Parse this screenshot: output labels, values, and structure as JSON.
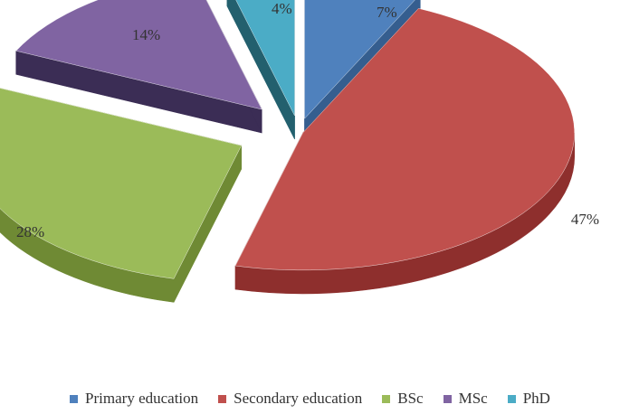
{
  "chart_data": {
    "type": "pie",
    "style": "3d-exploded",
    "categories": [
      "Primary education",
      "Secondary education",
      "BSc",
      "MSc",
      "PhD"
    ],
    "values": [
      7,
      47,
      28,
      14,
      4
    ],
    "labels": [
      "7%",
      "47%",
      "28%",
      "14%",
      "4%"
    ],
    "colors": [
      "#4F81BD",
      "#C0504D",
      "#9BBB59",
      "#8064A2",
      "#4BACC6"
    ],
    "side_colors": [
      "#355E8F",
      "#8E2F2D",
      "#6F8A34",
      "#3B2D55",
      "#23606E"
    ],
    "legend_position": "bottom"
  }
}
